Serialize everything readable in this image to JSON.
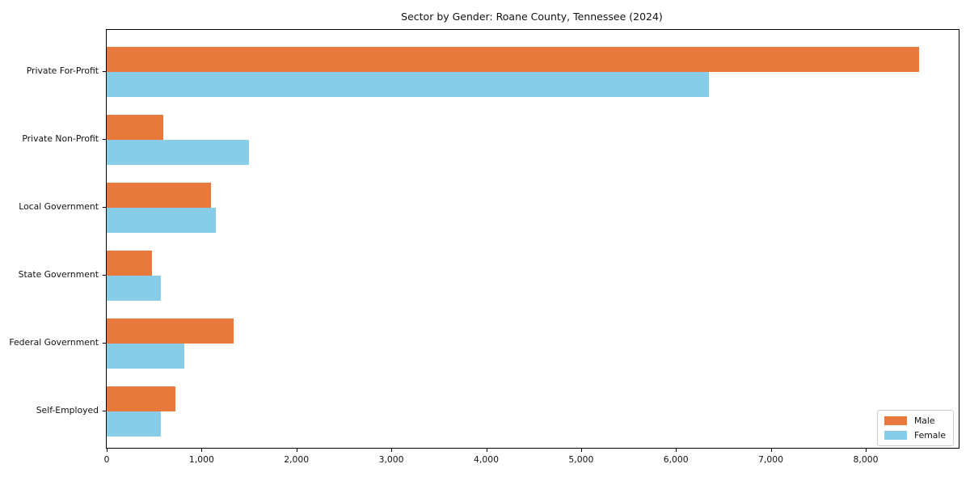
{
  "title": "Sector by Gender: Roane County, Tennessee (2024)",
  "chart_data": {
    "type": "bar",
    "orientation": "horizontal",
    "title": "Sector by Gender: Roane County, Tennessee (2024)",
    "xlabel": "",
    "ylabel": "",
    "categories": [
      "Private For-Profit",
      "Private Non-Profit",
      "Local Government",
      "State Government",
      "Federal Government",
      "Self-Employed"
    ],
    "series": [
      {
        "name": "Male",
        "color": "#e8793c",
        "values": [
          8560,
          600,
          1100,
          480,
          1340,
          720
        ]
      },
      {
        "name": "Female",
        "color": "#87cde8",
        "values": [
          6350,
          1500,
          1150,
          570,
          820,
          570
        ]
      }
    ],
    "xlim": [
      0,
      8980
    ],
    "x_ticks": [
      0,
      1000,
      2000,
      3000,
      4000,
      5000,
      6000,
      7000,
      8000
    ],
    "x_tick_labels": [
      "0",
      "1,000",
      "2,000",
      "3,000",
      "4,000",
      "5,000",
      "6,000",
      "7,000",
      "8,000"
    ],
    "grid": false,
    "legend_position": "lower right"
  },
  "legend": {
    "items": [
      {
        "label": "Male",
        "color": "#e8793c"
      },
      {
        "label": "Female",
        "color": "#87cde8"
      }
    ]
  }
}
